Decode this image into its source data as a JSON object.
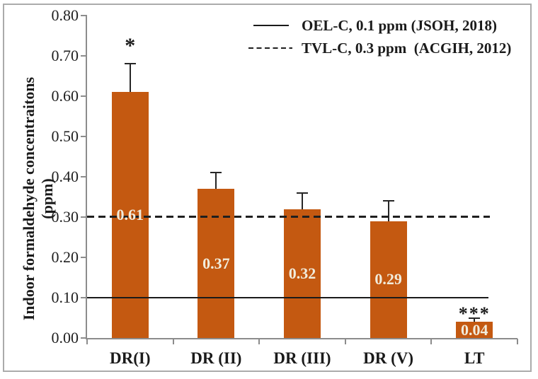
{
  "figure": {
    "background": "#ffffff",
    "border_color": "#ababab"
  },
  "chart_data": {
    "type": "bar",
    "title": "",
    "categories": [
      "DR(I)",
      "DR (II)",
      "DR (III)",
      "DR (V)",
      "LT"
    ],
    "values": [
      0.61,
      0.37,
      0.32,
      0.29,
      0.04
    ],
    "data_labels": [
      "0.61",
      "0.37",
      "0.32",
      "0.29",
      "0.04"
    ],
    "error_upper": [
      0.07,
      0.04,
      0.04,
      0.05,
      0.01
    ],
    "significance_labels": [
      "*",
      "",
      "",
      "",
      "***"
    ],
    "ylabel_line1": "Indoor formaldehyde concentraitons",
    "ylabel_line2": "(ppm)",
    "xlabel": "",
    "ylim": [
      0,
      0.8
    ],
    "y_tick_step": 0.1,
    "y_tick_labels": [
      "0.00",
      "0.10",
      "0.20",
      "0.30",
      "0.40",
      "0.50",
      "0.60",
      "0.70",
      "0.80"
    ],
    "grid": false,
    "legend_position": "top-right",
    "colors": {
      "bar": "#C45911",
      "bar_label_text": "#F1ECDC",
      "axis": "#8c8c8c",
      "reference_line": "#1a1a1a",
      "text": "#1a1a1a"
    },
    "reference_lines": [
      {
        "style": "solid",
        "value": 0.1,
        "label": "OEL-C, 0.1 ppm (JSOH, 2018)"
      },
      {
        "style": "dashed",
        "value": 0.3,
        "label": "TVL-C, 0.3 ppm  (ACGIH, 2012)"
      }
    ]
  }
}
